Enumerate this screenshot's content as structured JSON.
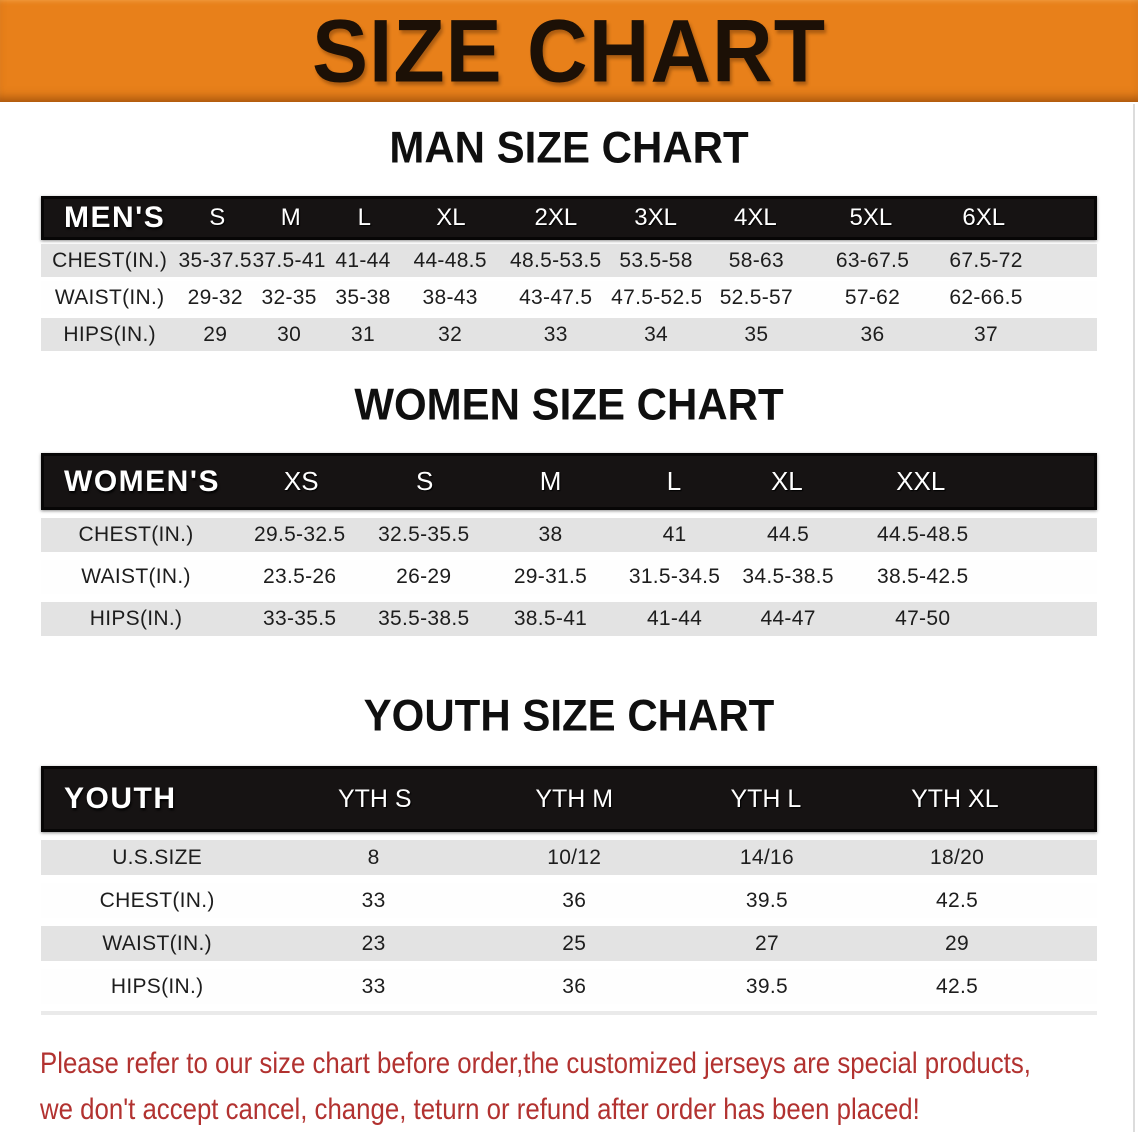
{
  "banner": {
    "title": "SIZE CHART"
  },
  "colors": {
    "banner_bg": "#e8801a",
    "header_bar": "#161313",
    "row_gray": "#e3e3e3",
    "disclaimer_red": "#b23230"
  },
  "sections": [
    {
      "heading": "MAN SIZE CHART",
      "table": {
        "corner_label": "MEN'S",
        "columns": [
          "S",
          "M",
          "L",
          "XL",
          "2XL",
          "3XL",
          "4XL",
          "5XL",
          "6XL"
        ],
        "rows": [
          {
            "label": "CHEST(IN.)",
            "values": [
              "35-37.5",
              "37.5-41",
              "41-44",
              "44-48.5",
              "48.5-53.5",
              "53.5-58",
              "58-63",
              "63-67.5",
              "67.5-72"
            ]
          },
          {
            "label": "WAIST(IN.)",
            "values": [
              "29-32",
              "32-35",
              "35-38",
              "38-43",
              "43-47.5",
              "47.5-52.5",
              "52.5-57",
              "57-62",
              "62-66.5"
            ]
          },
          {
            "label": "HIPS(IN.)",
            "values": [
              "29",
              "30",
              "31",
              "32",
              "33",
              "34",
              "35",
              "36",
              "37"
            ]
          }
        ]
      }
    },
    {
      "heading": "WOMEN SIZE CHART",
      "table": {
        "corner_label": "WOMEN'S",
        "columns": [
          "XS",
          "S",
          "M",
          "L",
          "XL",
          "XXL"
        ],
        "rows": [
          {
            "label": "CHEST(IN.)",
            "values": [
              "29.5-32.5",
              "32.5-35.5",
              "38",
              "41",
              "44.5",
              "44.5-48.5"
            ]
          },
          {
            "label": "WAIST(IN.)",
            "values": [
              "23.5-26",
              "26-29",
              "29-31.5",
              "31.5-34.5",
              "34.5-38.5",
              "38.5-42.5"
            ]
          },
          {
            "label": "HIPS(IN.)",
            "values": [
              "33-35.5",
              "35.5-38.5",
              "38.5-41",
              "41-44",
              "44-47",
              "47-50"
            ]
          }
        ]
      }
    },
    {
      "heading": "YOUTH SIZE CHART",
      "table": {
        "corner_label": "YOUTH",
        "columns": [
          "YTH S",
          "YTH M",
          "YTH L",
          "YTH XL"
        ],
        "rows": [
          {
            "label": "U.S.SIZE",
            "values": [
              "8",
              "10/12",
              "14/16",
              "18/20"
            ]
          },
          {
            "label": "CHEST(IN.)",
            "values": [
              "33",
              "36",
              "39.5",
              "42.5"
            ]
          },
          {
            "label": "WAIST(IN.)",
            "values": [
              "23",
              "25",
              "27",
              "29"
            ]
          },
          {
            "label": "HIPS(IN.)",
            "values": [
              "33",
              "36",
              "39.5",
              "42.5"
            ]
          }
        ]
      }
    }
  ],
  "disclaimer": {
    "line1": "Please refer to our size chart before order,the customized jerseys are special products,",
    "line2": "we don't accept cancel, change, teturn or refund after order has been placed!"
  }
}
